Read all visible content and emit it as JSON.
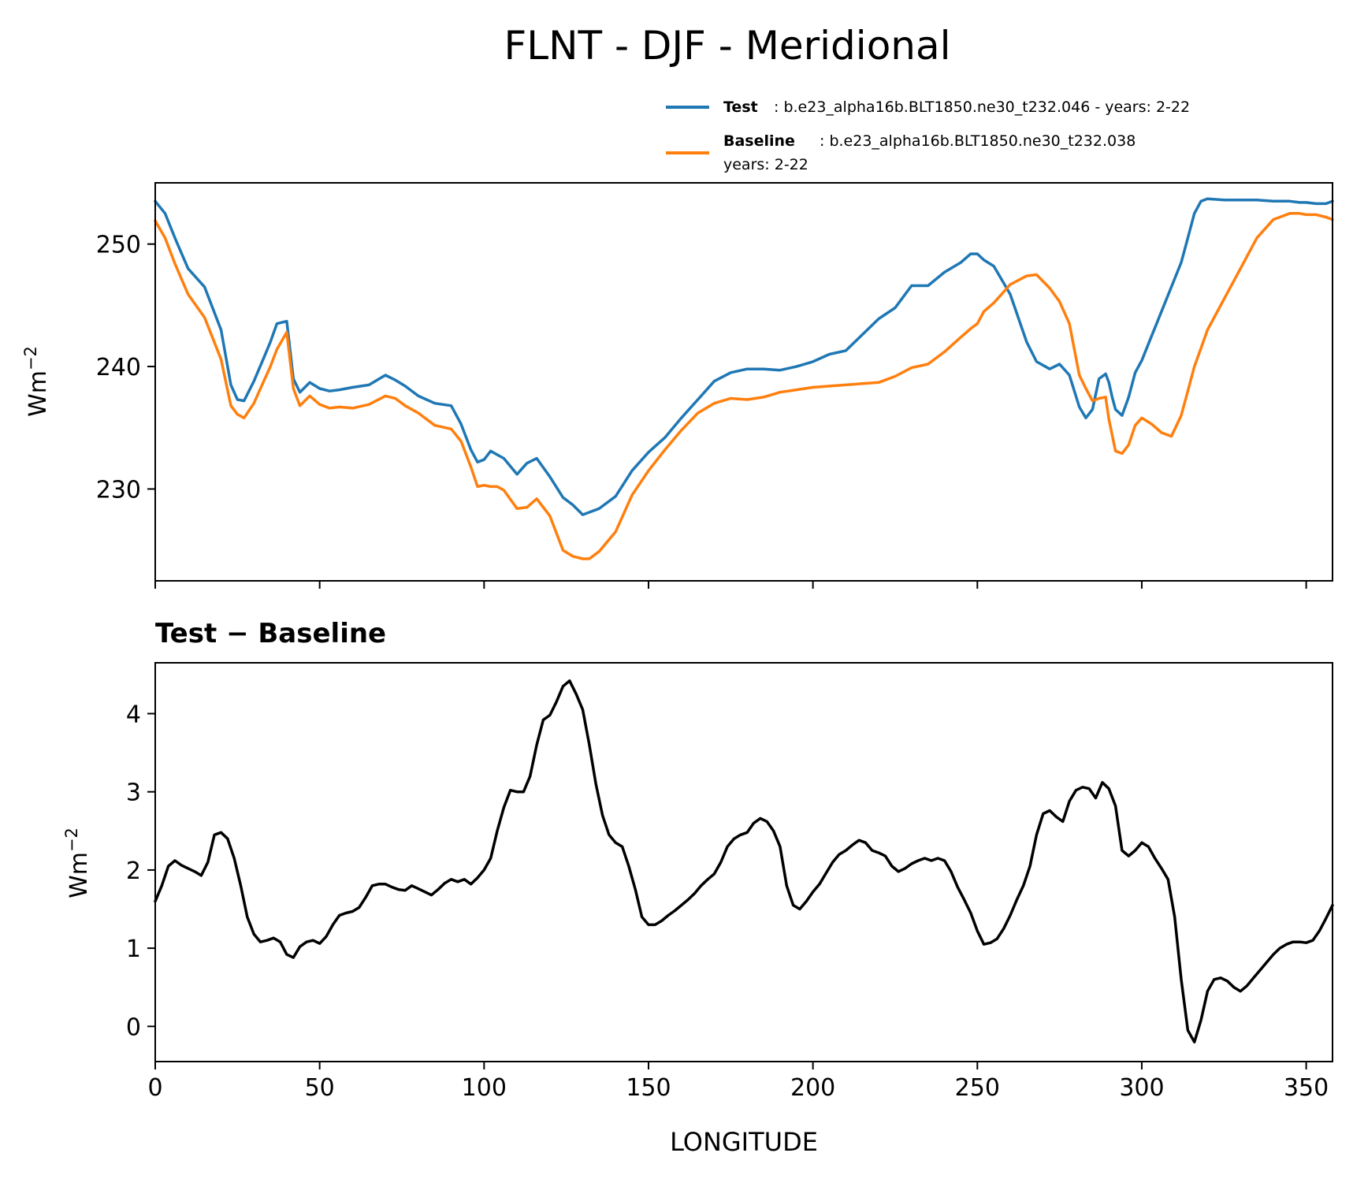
{
  "chart_data": [
    {
      "type": "line",
      "title": "FLNT - DJF - Meridional",
      "ylabel": "Wm",
      "ylabel_exp": "−2",
      "xlim": [
        0,
        358
      ],
      "ylim": [
        222.5,
        255
      ],
      "yticks": [
        230,
        240,
        250
      ],
      "legend_placement": "upper-right",
      "series": [
        {
          "name": "Test",
          "legend_label": "Test",
          "legend_text": ": b.e23_alpha16b.BLT1850.ne30_t232.046 - years: 2-22",
          "color": "#1f77b4",
          "x": [
            0,
            3,
            6,
            10,
            15,
            20,
            23,
            25,
            27,
            30,
            33,
            35,
            37,
            40,
            42,
            44,
            47,
            50,
            53,
            56,
            60,
            65,
            70,
            73,
            76,
            80,
            85,
            90,
            93,
            96,
            98,
            100,
            102,
            104,
            106,
            110,
            113,
            116,
            120,
            124,
            127,
            130,
            132,
            135,
            140,
            145,
            150,
            155,
            160,
            165,
            170,
            175,
            180,
            185,
            190,
            195,
            200,
            205,
            210,
            215,
            220,
            225,
            230,
            235,
            240,
            245,
            248,
            250,
            252,
            255,
            260,
            265,
            268,
            272,
            275,
            278,
            281,
            283,
            285,
            287,
            289,
            290,
            291,
            292,
            294,
            296,
            298,
            300,
            303,
            306,
            309,
            312,
            314,
            316,
            318,
            320,
            325,
            330,
            335,
            340,
            345,
            348,
            350,
            353,
            356,
            358
          ],
          "values": [
            253.5,
            252.5,
            250.5,
            248,
            246.5,
            243,
            238.5,
            237.3,
            237.2,
            238.8,
            240.7,
            242,
            243.5,
            243.7,
            239,
            237.9,
            238.7,
            238.2,
            238.0,
            238.1,
            238.3,
            238.5,
            239.3,
            238.9,
            238.4,
            237.6,
            237.0,
            236.8,
            235.3,
            233.2,
            232.2,
            232.4,
            233.1,
            232.8,
            232.5,
            231.2,
            232.1,
            232.5,
            231.0,
            229.3,
            228.7,
            227.9,
            228.1,
            228.4,
            229.4,
            231.5,
            233.0,
            234.2,
            235.8,
            237.3,
            238.8,
            239.5,
            239.8,
            239.8,
            239.7,
            240.0,
            240.4,
            241.0,
            241.3,
            242.6,
            243.9,
            244.8,
            246.6,
            246.6,
            247.7,
            248.5,
            249.2,
            249.2,
            248.7,
            248.2,
            245.9,
            242,
            240.4,
            239.8,
            240.2,
            239.3,
            236.7,
            235.8,
            236.5,
            239.0,
            239.4,
            238.7,
            237.5,
            236.5,
            236.0,
            237.5,
            239.5,
            240.5,
            242.5,
            244.5,
            246.5,
            248.5,
            250.5,
            252.5,
            253.5,
            253.7,
            253.6,
            253.6,
            253.6,
            253.5,
            253.5,
            253.4,
            253.4,
            253.3,
            253.3,
            253.5
          ]
        },
        {
          "name": "Baseline",
          "legend_label": "Baseline",
          "legend_text": ": b.e23_alpha16b.BLT1850.ne30_t232.038",
          "legend_text2": "years: 2-22",
          "color": "#ff7f0e",
          "x": [
            0,
            3,
            6,
            10,
            15,
            20,
            23,
            25,
            27,
            30,
            33,
            35,
            37,
            40,
            42,
            44,
            47,
            50,
            53,
            56,
            60,
            65,
            70,
            73,
            76,
            80,
            85,
            90,
            93,
            96,
            98,
            100,
            102,
            104,
            106,
            110,
            113,
            116,
            120,
            124,
            127,
            130,
            132,
            135,
            140,
            145,
            150,
            155,
            160,
            165,
            170,
            175,
            180,
            185,
            190,
            195,
            200,
            205,
            210,
            215,
            220,
            225,
            230,
            235,
            240,
            245,
            248,
            250,
            252,
            255,
            260,
            265,
            268,
            272,
            275,
            278,
            281,
            283,
            285,
            287,
            289,
            290,
            291,
            292,
            294,
            296,
            298,
            300,
            303,
            306,
            309,
            312,
            314,
            316,
            318,
            320,
            325,
            330,
            335,
            340,
            345,
            348,
            350,
            353,
            356,
            358
          ],
          "values": [
            251.9,
            250.5,
            248.4,
            245.9,
            244.0,
            240.6,
            236.8,
            236.1,
            235.8,
            237.0,
            238.8,
            240.0,
            241.4,
            242.8,
            238.2,
            236.8,
            237.6,
            236.9,
            236.6,
            236.7,
            236.6,
            236.9,
            237.6,
            237.4,
            236.8,
            236.2,
            235.2,
            234.9,
            233.9,
            231.8,
            230.2,
            230.3,
            230.2,
            230.2,
            229.9,
            228.4,
            228.5,
            229.2,
            227.8,
            225.0,
            224.5,
            224.3,
            224.3,
            224.9,
            226.5,
            229.5,
            231.5,
            233.2,
            234.8,
            236.2,
            237.0,
            237.4,
            237.3,
            237.5,
            237.9,
            238.1,
            238.3,
            238.4,
            238.5,
            238.6,
            238.7,
            239.2,
            239.9,
            240.2,
            241.2,
            242.4,
            243.1,
            243.5,
            244.5,
            245.2,
            246.7,
            247.4,
            247.5,
            246.4,
            245.3,
            243.5,
            239.3,
            238.2,
            237.2,
            237.4,
            237.5,
            235.7,
            234.4,
            233.1,
            232.9,
            233.6,
            235.2,
            235.8,
            235.3,
            234.6,
            234.3,
            236.0,
            238.0,
            240.0,
            241.5,
            243.0,
            245.5,
            248.0,
            250.5,
            252.0,
            252.5,
            252.5,
            252.4,
            252.4,
            252.2,
            252.0
          ]
        }
      ]
    },
    {
      "type": "line",
      "title": "Test − Baseline",
      "xlabel": "LONGITUDE",
      "ylabel": "Wm",
      "ylabel_exp": "−2",
      "xlim": [
        0,
        358
      ],
      "ylim": [
        -0.45,
        4.65
      ],
      "xticks": [
        0,
        50,
        100,
        150,
        200,
        250,
        300,
        350
      ],
      "yticks": [
        0,
        1,
        2,
        3,
        4
      ],
      "series": [
        {
          "color": "#000000",
          "x": [
            0,
            2,
            4,
            6,
            8,
            10,
            12,
            14,
            16,
            18,
            20,
            22,
            24,
            26,
            28,
            30,
            32,
            34,
            36,
            38,
            40,
            42,
            44,
            46,
            48,
            50,
            52,
            54,
            56,
            58,
            60,
            62,
            64,
            66,
            68,
            70,
            72,
            74,
            76,
            78,
            80,
            82,
            84,
            86,
            88,
            90,
            92,
            94,
            96,
            98,
            100,
            102,
            104,
            106,
            108,
            110,
            112,
            114,
            116,
            118,
            120,
            122,
            124,
            126,
            128,
            130,
            132,
            134,
            136,
            138,
            140,
            142,
            144,
            146,
            148,
            150,
            152,
            154,
            156,
            158,
            160,
            162,
            164,
            166,
            168,
            170,
            172,
            174,
            176,
            178,
            180,
            182,
            184,
            186,
            188,
            190,
            192,
            194,
            196,
            198,
            200,
            202,
            204,
            206,
            208,
            210,
            212,
            214,
            216,
            218,
            220,
            222,
            224,
            226,
            228,
            230,
            232,
            234,
            236,
            238,
            240,
            242,
            244,
            246,
            248,
            250,
            252,
            254,
            256,
            258,
            260,
            262,
            264,
            266,
            268,
            270,
            272,
            274,
            276,
            278,
            280,
            282,
            284,
            286,
            288,
            290,
            292,
            294,
            296,
            298,
            300,
            302,
            304,
            306,
            308,
            310,
            312,
            314,
            316,
            318,
            320,
            322,
            324,
            326,
            328,
            330,
            332,
            334,
            336,
            338,
            340,
            342,
            344,
            346,
            348,
            350,
            352,
            354,
            356,
            358
          ],
          "values": [
            1.6,
            1.8,
            2.05,
            2.12,
            2.06,
            2.02,
            1.98,
            1.93,
            2.1,
            2.45,
            2.48,
            2.4,
            2.15,
            1.8,
            1.4,
            1.18,
            1.08,
            1.1,
            1.13,
            1.08,
            0.92,
            0.88,
            1.02,
            1.08,
            1.1,
            1.06,
            1.15,
            1.3,
            1.42,
            1.45,
            1.47,
            1.52,
            1.65,
            1.8,
            1.82,
            1.82,
            1.78,
            1.75,
            1.74,
            1.8,
            1.76,
            1.72,
            1.68,
            1.75,
            1.83,
            1.88,
            1.85,
            1.88,
            1.82,
            1.9,
            2.0,
            2.15,
            2.5,
            2.8,
            3.02,
            3.0,
            3.0,
            3.2,
            3.6,
            3.92,
            3.98,
            4.15,
            4.35,
            4.42,
            4.25,
            4.05,
            3.6,
            3.1,
            2.7,
            2.45,
            2.35,
            2.3,
            2.05,
            1.75,
            1.4,
            1.3,
            1.3,
            1.35,
            1.42,
            1.48,
            1.55,
            1.62,
            1.7,
            1.8,
            1.88,
            1.95,
            2.1,
            2.3,
            2.4,
            2.45,
            2.48,
            2.6,
            2.66,
            2.62,
            2.5,
            2.3,
            1.8,
            1.55,
            1.5,
            1.6,
            1.72,
            1.82,
            1.96,
            2.1,
            2.2,
            2.25,
            2.32,
            2.38,
            2.35,
            2.25,
            2.22,
            2.18,
            2.05,
            1.98,
            2.02,
            2.08,
            2.12,
            2.15,
            2.12,
            2.15,
            2.12,
            1.98,
            1.78,
            1.62,
            1.45,
            1.22,
            1.05,
            1.07,
            1.12,
            1.25,
            1.42,
            1.62,
            1.8,
            2.05,
            2.45,
            2.72,
            2.76,
            2.68,
            2.62,
            2.88,
            3.02,
            3.06,
            3.04,
            2.92,
            3.12,
            3.04,
            2.82,
            2.25,
            2.18,
            2.25,
            2.35,
            2.3,
            2.15,
            2.02,
            1.88,
            1.4,
            0.6,
            -0.05,
            -0.2,
            0.08,
            0.45,
            0.6,
            0.62,
            0.58,
            0.5,
            0.45,
            0.52,
            0.62,
            0.72,
            0.82,
            0.92,
            1.0,
            1.05,
            1.08,
            1.08,
            1.07,
            1.1,
            1.22,
            1.38,
            1.55
          ]
        }
      ]
    }
  ]
}
